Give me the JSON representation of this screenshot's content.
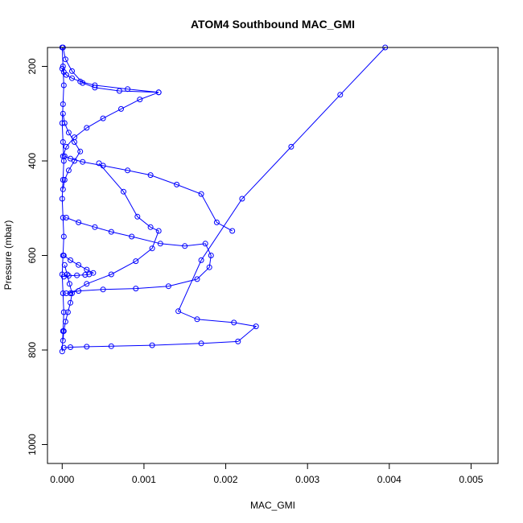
{
  "chart_data": {
    "type": "line",
    "title": "ATOM4 Southbound MAC_GMI",
    "xlabel": "MAC_GMI",
    "ylabel": "Pressure (mbar)",
    "xlim": [
      -0.00018,
      0.00533
    ],
    "ylim": [
      1040,
      160
    ],
    "y_reversed": true,
    "x_ticks": [
      0.0,
      0.001,
      0.002,
      0.003,
      0.004,
      0.005
    ],
    "x_tick_labels": [
      "0.000",
      "0.001",
      "0.002",
      "0.003",
      "0.004",
      "0.005"
    ],
    "y_ticks": [
      200,
      400,
      600,
      800,
      1000
    ],
    "y_tick_labels": [
      "200",
      "400",
      "600",
      "800",
      "1000"
    ],
    "series_color": "#0000ff",
    "marker": "open-circle",
    "grid": false,
    "legend": "none",
    "series": [
      {
        "x": [
          1e-05,
          4e-05,
          0.00012,
          0.00025,
          0.0004,
          0.0007,
          0.00118,
          0.0008,
          0.0004,
          0.00022,
          0.00012,
          5e-05,
          2e-05,
          0.0
        ],
        "y": [
          160,
          185,
          210,
          235,
          245,
          252,
          255,
          248,
          240,
          232,
          225,
          218,
          212,
          205
        ]
      },
      {
        "x": [
          0.00395,
          0.0034,
          0.0028,
          0.0022,
          0.0017,
          0.00142,
          0.00165,
          0.0021,
          0.00237,
          0.00215,
          0.0017,
          0.0011,
          0.0006,
          0.0003,
          0.0001,
          2e-05
        ],
        "y": [
          160,
          260,
          370,
          480,
          610,
          718,
          735,
          742,
          750,
          782,
          786,
          790,
          792,
          793,
          794,
          795
        ]
      },
      {
        "x": [
          0.00208,
          0.00189,
          0.0017,
          0.0014,
          0.00108,
          0.0008,
          0.0005,
          0.00025,
          0.0001,
          3e-05
        ],
        "y": [
          548,
          530,
          470,
          450,
          430,
          420,
          410,
          402,
          395,
          390
        ]
      },
      {
        "x": [
          0.00045,
          0.00075,
          0.00092,
          0.00108,
          0.00118,
          0.0011,
          0.0009,
          0.0006,
          0.0003,
          0.0001
        ],
        "y": [
          405,
          465,
          518,
          540,
          548,
          585,
          612,
          640,
          660,
          680
        ]
      },
      {
        "x": [
          5e-05,
          0.0002,
          0.0004,
          0.0006,
          0.00085,
          0.0012,
          0.0015,
          0.00175,
          0.00182,
          0.0018,
          0.00165,
          0.0013,
          0.0009,
          0.0005,
          0.0002,
          5e-05
        ],
        "y": [
          520,
          530,
          540,
          550,
          560,
          575,
          580,
          575,
          600,
          625,
          650,
          665,
          670,
          672,
          675,
          680
        ]
      },
      {
        "x": [
          2e-05,
          0.0001,
          0.0002,
          0.0003,
          0.00038,
          0.00033,
          0.00028,
          0.00018,
          8e-05,
          2e-05
        ],
        "y": [
          600,
          610,
          620,
          630,
          637,
          640,
          641,
          642,
          643,
          645
        ]
      },
      {
        "x": [
          0.00118,
          0.00095,
          0.00072,
          0.0005,
          0.0003,
          0.00015,
          5e-05,
          1e-05
        ],
        "y": [
          255,
          270,
          290,
          310,
          330,
          350,
          370,
          390
        ]
      },
      {
        "x": [
          1e-05,
          3e-05,
          8e-05,
          0.00015,
          0.00022,
          0.00015,
          8e-05,
          3e-05,
          1e-05
        ],
        "y": [
          300,
          320,
          340,
          360,
          380,
          400,
          420,
          440,
          460
        ]
      },
      {
        "x": [
          0.0,
          1e-05,
          2e-05,
          1e-05,
          0.0,
          1e-05,
          2e-05,
          1e-05,
          0.0,
          1e-05,
          2e-05,
          1e-05,
          0.0,
          1e-05,
          2e-05,
          1e-05,
          0.0
        ],
        "y": [
          160,
          200,
          240,
          280,
          320,
          360,
          400,
          440,
          480,
          520,
          560,
          600,
          640,
          680,
          720,
          760,
          803
        ]
      },
      {
        "x": [
          3e-05,
          6e-05,
          9e-05,
          0.00012,
          0.0001,
          7e-05,
          4e-05,
          2e-05,
          1e-05
        ],
        "y": [
          620,
          640,
          660,
          680,
          700,
          720,
          740,
          760,
          780
        ]
      }
    ]
  }
}
